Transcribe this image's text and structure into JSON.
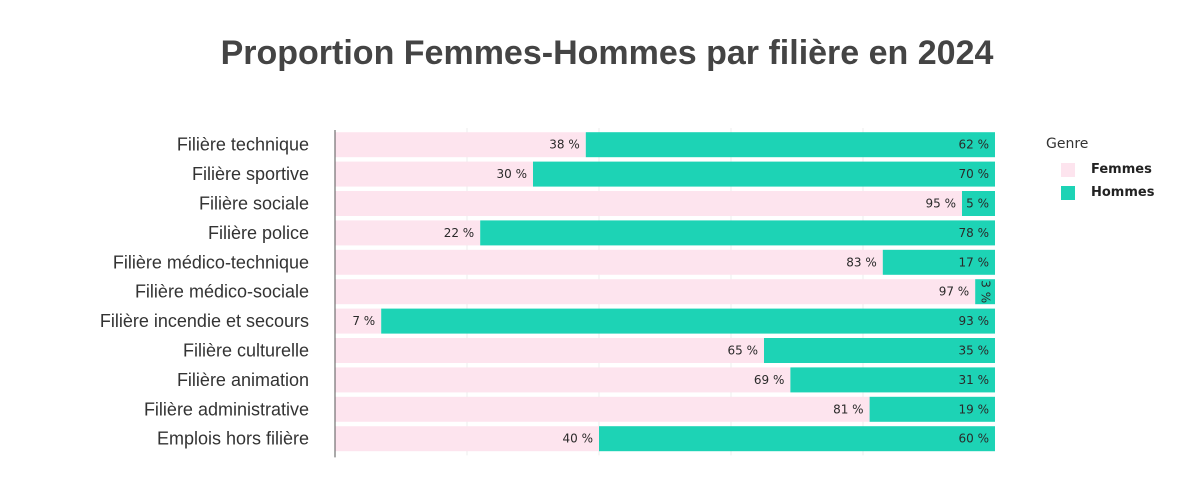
{
  "title": "Proportion Femmes-Hommes par filière en 2024",
  "colors": {
    "femmes": "#fde4ee",
    "hommes": "#1dd3b5"
  },
  "legend": {
    "title": "Genre",
    "items": [
      {
        "label": "Femmes",
        "color": "#fde4ee"
      },
      {
        "label": "Hommes",
        "color": "#1dd3b5"
      }
    ]
  },
  "chart_data": {
    "type": "bar",
    "orientation": "horizontal",
    "stacked": "percent",
    "title": "Proportion Femmes-Hommes par filière en 2024",
    "xlim": [
      0,
      100
    ],
    "grid": true,
    "legend_position": "right",
    "categories": [
      "Filière technique",
      "Filière sportive",
      "Filière sociale",
      "Filière police",
      "Filière médico-technique",
      "Filière médico-sociale",
      "Filière incendie et secours",
      "Filière culturelle",
      "Filière animation",
      "Filière administrative",
      "Emplois hors filière"
    ],
    "series": [
      {
        "name": "Femmes",
        "values": [
          38,
          30,
          95,
          22,
          83,
          97,
          7,
          65,
          69,
          81,
          40
        ],
        "labels": [
          "38 %",
          "30 %",
          "95 %",
          "22 %",
          "83 %",
          "97 %",
          "7 %",
          "65 %",
          "69 %",
          "81 %",
          "40 %"
        ]
      },
      {
        "name": "Hommes",
        "values": [
          62,
          70,
          5,
          78,
          17,
          3,
          93,
          35,
          31,
          19,
          60
        ],
        "labels": [
          "62 %",
          "70 %",
          "5 %",
          "78 %",
          "17 %",
          "3 %",
          "93 %",
          "35 %",
          "31 %",
          "19 %",
          "60 %"
        ]
      }
    ]
  }
}
